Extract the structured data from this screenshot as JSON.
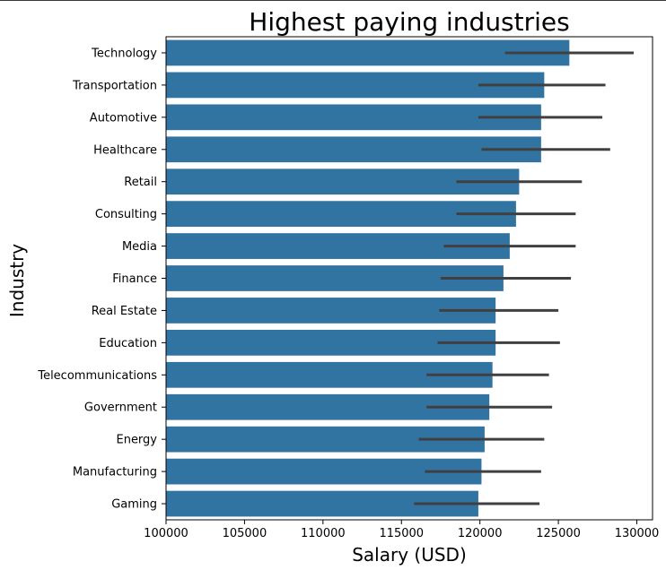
{
  "chart_data": {
    "type": "bar",
    "orientation": "horizontal",
    "title": "Highest paying industries",
    "xlabel": "Salary (USD)",
    "ylabel": "Industry",
    "xlim": [
      100000,
      131000
    ],
    "xticks": [
      "100000",
      "105000",
      "110000",
      "115000",
      "120000",
      "125000",
      "130000"
    ],
    "bar_color": "#3274a1",
    "errorbar_color": "#404040",
    "categories": [
      "Technology",
      "Transportation",
      "Automotive",
      "Healthcare",
      "Retail",
      "Consulting",
      "Media",
      "Finance",
      "Real Estate",
      "Education",
      "Telecommunications",
      "Government",
      "Energy",
      "Manufacturing",
      "Gaming"
    ],
    "values": [
      125700,
      124100,
      123900,
      123900,
      122500,
      122300,
      121900,
      121500,
      121000,
      121000,
      120800,
      120600,
      120300,
      120100,
      119900
    ],
    "error_low": [
      121600,
      119900,
      119900,
      120100,
      118500,
      118500,
      117700,
      117500,
      117400,
      117300,
      116600,
      116600,
      116100,
      116500,
      115800
    ],
    "error_high": [
      129800,
      128000,
      127800,
      128300,
      126500,
      126100,
      126100,
      125800,
      125000,
      125100,
      124400,
      124600,
      124100,
      123900,
      123800
    ]
  }
}
